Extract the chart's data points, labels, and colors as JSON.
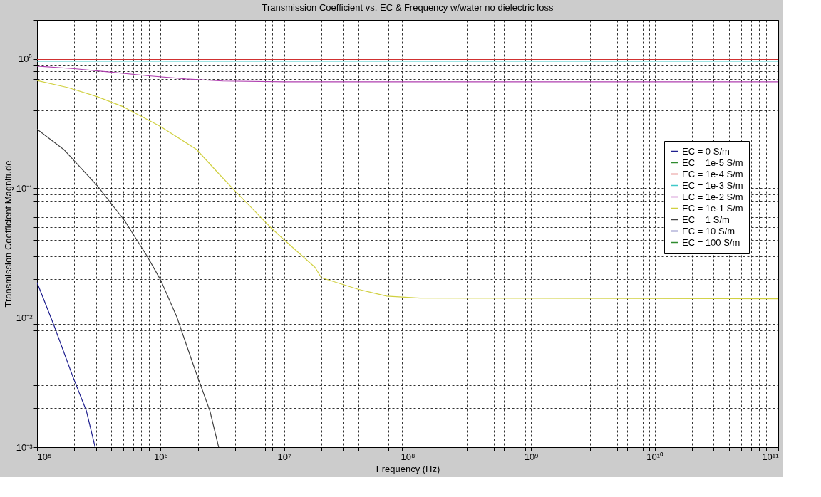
{
  "chart_data": {
    "type": "line",
    "title": "Transmission Coefficient vs. EC & Frequency w/water no dielectric loss",
    "xlabel": "Frequency (Hz)",
    "ylabel": "Transmission Coefficient Magnitude",
    "log": "xy",
    "grid": true,
    "legend": "right",
    "xlim": [
      100000,
      100000000000
    ],
    "ylim": [
      0.001,
      2
    ],
    "xticks": [
      {
        "value": 100000,
        "label": "10⁵"
      },
      {
        "value": 1000000,
        "label": "10⁶"
      },
      {
        "value": 10000000,
        "label": "10⁷"
      },
      {
        "value": 100000000,
        "label": "10⁸"
      },
      {
        "value": 1000000000,
        "label": "10⁹"
      },
      {
        "value": 10000000000,
        "label": "10¹⁰"
      },
      {
        "value": 100000000000,
        "label": "10¹¹"
      }
    ],
    "yticks": [
      {
        "value": 0.001,
        "label": "10⁻³"
      },
      {
        "value": 0.01,
        "label": "10⁻²"
      },
      {
        "value": 0.1,
        "label": "10⁻¹"
      },
      {
        "value": 1,
        "label": "10⁰"
      }
    ],
    "series": [
      {
        "name": "EC = 0     S/m",
        "color": "#1f1f8f"
      },
      {
        "name": "EC = 1e-5 S/m",
        "color": "#2e8b2e"
      },
      {
        "name": "EC = 1e-4 S/m",
        "color": "#d03030",
        "x": [
          100000,
          100000000000
        ],
        "values": [
          0.99,
          0.99
        ]
      },
      {
        "name": "EC = 1e-3 S/m",
        "color": "#40c8c8",
        "x": [
          100000,
          100000000000
        ],
        "values": [
          0.96,
          0.96
        ]
      },
      {
        "name": "EC = 1e-2 S/m",
        "color": "#b040b0",
        "x": [
          100000,
          200000,
          400000,
          800000,
          1600000,
          3200000,
          10000000,
          100000000000
        ],
        "values": [
          0.88,
          0.84,
          0.79,
          0.74,
          0.7,
          0.675,
          0.665,
          0.665
        ]
      },
      {
        "name": "EC = 1e-1 S/m",
        "color": "#d0d040",
        "x": [
          100000,
          178000,
          309000,
          490000,
          1000000,
          1950000,
          2950000,
          3980000,
          7760000,
          10000000,
          17800000,
          20000000,
          39800000,
          67600000,
          126000000,
          100000000000
        ],
        "values": [
          0.68,
          0.6,
          0.51,
          0.43,
          0.3,
          0.2,
          0.13,
          0.096,
          0.05,
          0.04,
          0.0245,
          0.0204,
          0.0166,
          0.0147,
          0.0142,
          0.014
        ]
      },
      {
        "name": "EC = 1     S/m",
        "color": "#404040",
        "x": [
          100000,
          166000,
          309000,
          513000,
          776000,
          1000000,
          1350000,
          1860000,
          2510000,
          2950000
        ],
        "values": [
          0.286,
          0.198,
          0.104,
          0.056,
          0.03,
          0.0196,
          0.0102,
          0.0042,
          0.0019,
          0.001
        ]
      },
      {
        "name": "EC = 10    S/m",
        "color": "#1f1f8f",
        "x": [
          100000,
          136000,
          195000,
          251000,
          295000
        ],
        "values": [
          0.0187,
          0.0089,
          0.0035,
          0.0019,
          0.001
        ]
      },
      {
        "name": "EC = 100  S/m",
        "color": "#2e8b2e"
      }
    ]
  }
}
